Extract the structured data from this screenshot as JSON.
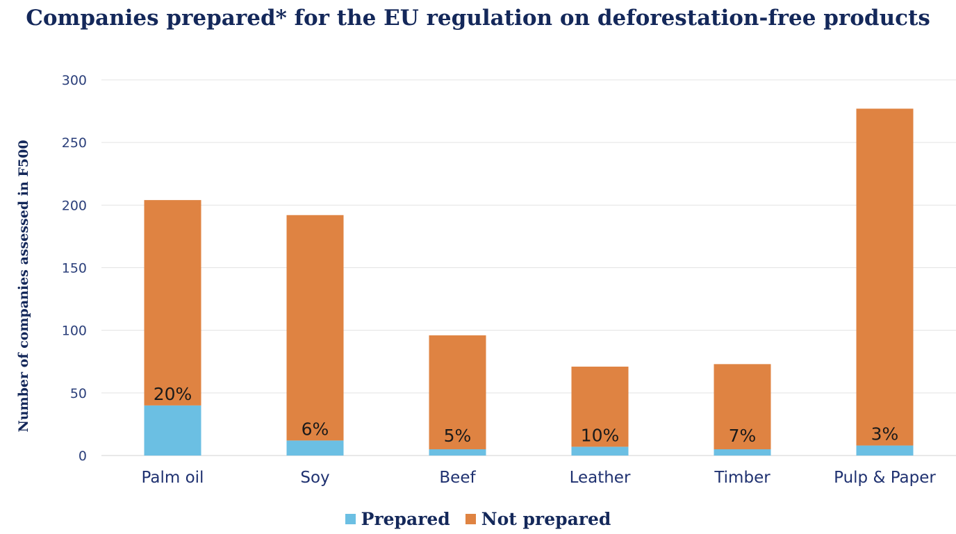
{
  "chart_data": {
    "type": "bar",
    "stacked": true,
    "title": "Companies prepared* for the EU regulation on deforestation-free products",
    "ylabel": "Number of companies assessed in F500",
    "ylim": [
      0,
      300
    ],
    "yticks": [
      0,
      50,
      100,
      150,
      200,
      250,
      300
    ],
    "categories": [
      "Palm oil",
      "Soy",
      "Beef",
      "Leather",
      "Timber",
      "Pulp & Paper"
    ],
    "series": [
      {
        "name": "Prepared",
        "color": "#6bbfe3",
        "values": [
          40,
          12,
          5,
          7,
          5,
          8
        ]
      },
      {
        "name": "Not prepared",
        "color": "#df8342",
        "values": [
          164,
          180,
          91,
          64,
          68,
          269
        ]
      }
    ],
    "data_labels": [
      "20%",
      "6%",
      "5%",
      "10%",
      "7%",
      "3%"
    ],
    "grid": true,
    "legend": "bottom"
  }
}
